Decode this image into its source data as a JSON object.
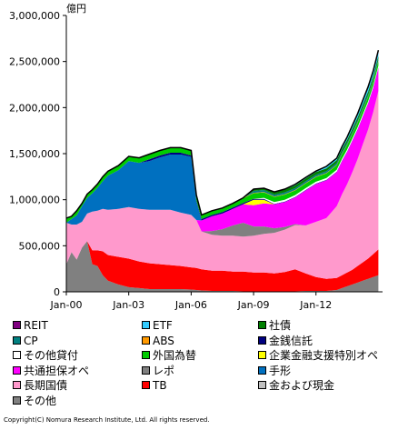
{
  "chart_data": {
    "type": "area",
    "stacked": true,
    "unit": "億円",
    "ylim": [
      0,
      3000000
    ],
    "yticks": [
      0,
      500000,
      1000000,
      1500000,
      2000000,
      2500000,
      3000000
    ],
    "ytick_labels": [
      "0",
      "500,000",
      "1,000,000",
      "1,500,000",
      "2,000,000",
      "2,500,000",
      "3,000,000"
    ],
    "xlim": [
      2000.0,
      2015.2
    ],
    "xticks": [
      2000,
      2003,
      2006,
      2009,
      2012
    ],
    "xtick_labels": [
      "Jan-00",
      "Jan-03",
      "Jan-06",
      "Jan-09",
      "Jan-12"
    ],
    "x": [
      2000.0,
      2000.25,
      2000.5,
      2000.75,
      2001.0,
      2001.25,
      2001.5,
      2001.75,
      2002.0,
      2002.5,
      2003.0,
      2003.5,
      2004.0,
      2004.5,
      2005.0,
      2005.5,
      2006.0,
      2006.25,
      2006.5,
      2007.0,
      2007.5,
      2008.0,
      2008.5,
      2009.0,
      2009.5,
      2010.0,
      2010.5,
      2011.0,
      2011.5,
      2012.0,
      2012.5,
      2013.0,
      2013.25,
      2013.5,
      2013.75,
      2014.0,
      2014.25,
      2014.5,
      2014.75,
      2015.0
    ],
    "series": [
      {
        "name": "その他",
        "color": "#808080",
        "values": [
          300000,
          430000,
          350000,
          480000,
          550000,
          300000,
          280000,
          180000,
          120000,
          80000,
          50000,
          40000,
          30000,
          30000,
          30000,
          30000,
          25000,
          20000,
          15000,
          10000,
          10000,
          10000,
          5000,
          5000,
          5000,
          5000,
          5000,
          5000,
          10000,
          10000,
          10000,
          20000,
          40000,
          60000,
          80000,
          100000,
          120000,
          140000,
          160000,
          180000
        ]
      },
      {
        "name": "TB",
        "color": "#ff0000",
        "values": [
          0,
          0,
          0,
          0,
          0,
          150000,
          170000,
          260000,
          280000,
          300000,
          310000,
          290000,
          280000,
          270000,
          260000,
          250000,
          240000,
          240000,
          230000,
          220000,
          220000,
          210000,
          215000,
          205000,
          205000,
          195000,
          210000,
          240000,
          190000,
          150000,
          130000,
          130000,
          140000,
          150000,
          160000,
          180000,
          200000,
          220000,
          250000,
          280000
        ]
      },
      {
        "name": "長期国債",
        "color": "#ff99cc",
        "values": [
          450000,
          300000,
          380000,
          280000,
          300000,
          420000,
          430000,
          460000,
          490000,
          520000,
          560000,
          570000,
          580000,
          590000,
          600000,
          580000,
          570000,
          520000,
          410000,
          390000,
          380000,
          390000,
          380000,
          400000,
          420000,
          440000,
          460000,
          480000,
          520000,
          600000,
          660000,
          780000,
          880000,
          960000,
          1060000,
          1160000,
          1280000,
          1400000,
          1540000,
          1720000
        ]
      },
      {
        "name": "レポ",
        "color": "#808080",
        "values": [
          0,
          0,
          0,
          0,
          0,
          0,
          0,
          0,
          0,
          0,
          0,
          0,
          0,
          0,
          0,
          0,
          0,
          0,
          0,
          40000,
          70000,
          110000,
          150000,
          100000,
          80000,
          50000,
          30000,
          10000,
          0,
          0,
          0,
          0,
          0,
          0,
          0,
          0,
          0,
          0,
          0,
          0
        ]
      },
      {
        "name": "共通担保オペ",
        "color": "#ff00ff",
        "values": [
          0,
          0,
          0,
          0,
          0,
          0,
          0,
          0,
          0,
          0,
          0,
          0,
          0,
          0,
          0,
          0,
          0,
          0,
          120000,
          160000,
          170000,
          180000,
          200000,
          230000,
          250000,
          260000,
          270000,
          290000,
          380000,
          410000,
          410000,
          370000,
          360000,
          350000,
          340000,
          320000,
          300000,
          280000,
          260000,
          250000
        ]
      },
      {
        "name": "手形",
        "color": "#0070c0",
        "values": [
          0,
          60000,
          100000,
          170000,
          170000,
          200000,
          250000,
          300000,
          370000,
          420000,
          500000,
          500000,
          530000,
          570000,
          600000,
          630000,
          630000,
          200000,
          0,
          0,
          0,
          0,
          0,
          0,
          0,
          0,
          0,
          0,
          0,
          0,
          0,
          0,
          0,
          0,
          0,
          0,
          0,
          0,
          0,
          0
        ]
      },
      {
        "name": "企業金融支援特別オペ",
        "color": "#ffff00",
        "values": [
          0,
          0,
          0,
          0,
          0,
          0,
          0,
          0,
          0,
          0,
          0,
          0,
          0,
          0,
          0,
          0,
          0,
          0,
          0,
          0,
          0,
          0,
          0,
          60000,
          40000,
          0,
          0,
          0,
          0,
          0,
          0,
          0,
          0,
          0,
          0,
          0,
          0,
          0,
          0,
          0
        ]
      },
      {
        "name": "金銭信託",
        "color": "#000080",
        "values": [
          0,
          0,
          0,
          0,
          0,
          0,
          0,
          0,
          0,
          0,
          0,
          0,
          20000,
          20000,
          20000,
          20000,
          15000,
          15000,
          15000,
          15000,
          15000,
          15000,
          15000,
          10000,
          10000,
          5000,
          5000,
          5000,
          5000,
          5000,
          5000,
          5000,
          5000,
          5000,
          5000,
          5000,
          5000,
          5000,
          5000,
          5000
        ]
      },
      {
        "name": "その他貸付",
        "color": "#ffffff",
        "values": [
          0,
          0,
          0,
          0,
          0,
          0,
          0,
          0,
          0,
          0,
          0,
          0,
          0,
          0,
          0,
          0,
          0,
          0,
          0,
          0,
          0,
          0,
          0,
          0,
          10000,
          20000,
          20000,
          20000,
          20000,
          20000,
          20000,
          20000,
          20000,
          20000,
          20000,
          20000,
          20000,
          20000,
          20000,
          20000
        ]
      },
      {
        "name": "外国為替",
        "color": "#00cc00",
        "values": [
          50000,
          30000,
          50000,
          30000,
          40000,
          40000,
          40000,
          50000,
          50000,
          50000,
          50000,
          50000,
          50000,
          50000,
          50000,
          50000,
          50000,
          50000,
          40000,
          40000,
          40000,
          40000,
          50000,
          60000,
          60000,
          55000,
          55000,
          50000,
          50000,
          50000,
          50000,
          50000,
          50000,
          50000,
          50000,
          50000,
          50000,
          50000,
          50000,
          50000
        ]
      },
      {
        "name": "ABS",
        "color": "#ff9900",
        "values": [
          0,
          0,
          0,
          0,
          0,
          0,
          0,
          0,
          0,
          0,
          0,
          5000,
          5000,
          5000,
          5000,
          5000,
          5000,
          5000,
          5000,
          5000,
          5000,
          5000,
          5000,
          5000,
          5000,
          5000,
          5000,
          5000,
          5000,
          5000,
          5000,
          5000,
          5000,
          5000,
          5000,
          5000,
          5000,
          5000,
          5000,
          5000
        ]
      },
      {
        "name": "CP",
        "color": "#008080",
        "values": [
          0,
          0,
          0,
          0,
          0,
          0,
          0,
          0,
          0,
          0,
          0,
          0,
          0,
          0,
          0,
          0,
          0,
          0,
          0,
          0,
          0,
          0,
          0,
          20000,
          20000,
          20000,
          20000,
          20000,
          20000,
          20000,
          20000,
          20000,
          20000,
          20000,
          20000,
          20000,
          20000,
          20000,
          20000,
          20000
        ]
      },
      {
        "name": "社債",
        "color": "#008000",
        "values": [
          0,
          0,
          0,
          0,
          0,
          0,
          0,
          0,
          0,
          0,
          0,
          0,
          0,
          0,
          0,
          0,
          0,
          0,
          0,
          0,
          0,
          0,
          0,
          20000,
          20000,
          30000,
          30000,
          30000,
          30000,
          30000,
          30000,
          30000,
          30000,
          30000,
          30000,
          30000,
          30000,
          30000,
          30000,
          30000
        ]
      },
      {
        "name": "ETF",
        "color": "#33ccff",
        "values": [
          0,
          0,
          0,
          0,
          0,
          0,
          0,
          0,
          0,
          0,
          0,
          0,
          0,
          0,
          0,
          0,
          0,
          0,
          0,
          0,
          0,
          0,
          0,
          0,
          0,
          0,
          5000,
          10000,
          10000,
          10000,
          20000,
          20000,
          25000,
          30000,
          35000,
          40000,
          45000,
          50000,
          55000,
          60000
        ]
      },
      {
        "name": "REIT",
        "color": "#800080",
        "values": [
          0,
          0,
          0,
          0,
          0,
          0,
          0,
          0,
          0,
          0,
          0,
          0,
          0,
          0,
          0,
          0,
          0,
          0,
          0,
          0,
          0,
          0,
          0,
          0,
          0,
          0,
          0,
          1000,
          1000,
          1000,
          1500,
          1500,
          2000,
          2000,
          2500,
          2500,
          3000,
          3000,
          3500,
          3500
        ]
      }
    ],
    "legend": {
      "placement": "bottom",
      "rows": [
        [
          "REIT",
          "ETF",
          "社債"
        ],
        [
          "CP",
          "ABS",
          "金銭信託"
        ],
        [
          "その他貸付",
          "外国為替",
          "企業金融支援特別オペ"
        ],
        [
          "共通担保オペ",
          "レポ",
          "手形"
        ],
        [
          "長期国債",
          "TB",
          "金および現金"
        ],
        [
          "その他"
        ]
      ],
      "colors": {
        "REIT": "#800080",
        "ETF": "#33ccff",
        "社債": "#008000",
        "CP": "#008080",
        "ABS": "#ff9900",
        "金銭信託": "#000080",
        "その他貸付": "#ffffff",
        "外国為替": "#00cc00",
        "企業金融支援特別オペ": "#ffff00",
        "共通担保オペ": "#ff00ff",
        "レポ": "#808080",
        "手形": "#0070c0",
        "長期国債": "#ff99cc",
        "TB": "#ff0000",
        "金および現金": "#c0c0c0",
        "その他": "#808080"
      }
    }
  },
  "copyright": "Copyright(C) Nomura Research Institute, Ltd. All rights reserved."
}
